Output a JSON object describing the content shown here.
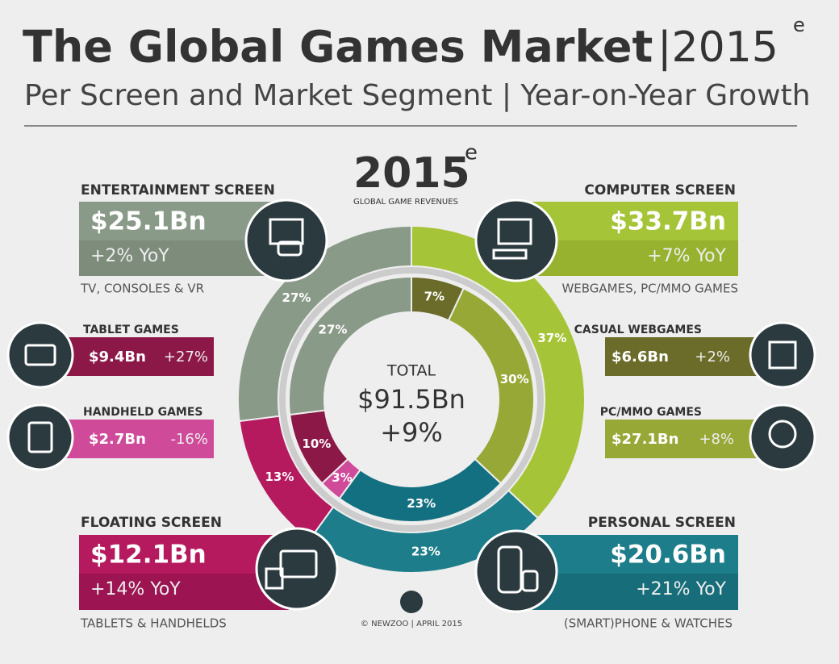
{
  "header": {
    "title": "The Global Games Market",
    "title_year": "|2015",
    "title_sup": "e",
    "subtitle": "Per Screen and Market Segment | Year-on-Year Growth"
  },
  "center": {
    "year": "2015",
    "year_sup": "e",
    "caption": "GLOBAL GAME REVENUES",
    "total_label": "TOTAL",
    "total": "$91.5Bn",
    "growth": "+9%"
  },
  "screens": [
    {
      "name": "ENTERTAINMENT SCREEN",
      "value": "$25.1Bn",
      "growth": "+2% YoY",
      "desc": "TV, CONSOLES & VR"
    },
    {
      "name": "COMPUTER SCREEN",
      "value": "$33.7Bn",
      "growth": "+7% YoY",
      "desc": "WEBGAMES, PC/MMO GAMES"
    },
    {
      "name": "FLOATING SCREEN",
      "value": "$12.1Bn",
      "growth": "+14% YoY",
      "desc": "TABLETS & HANDHELDS"
    },
    {
      "name": "PERSONAL SCREEN",
      "value": "$20.6Bn",
      "growth": "+21% YoY",
      "desc": "(SMART)PHONE & WATCHES"
    }
  ],
  "segments": [
    {
      "name": "TABLET GAMES",
      "value": "$9.4Bn",
      "growth": "+27%"
    },
    {
      "name": "HANDHELD GAMES",
      "value": "$2.7Bn",
      "growth": "-16%"
    },
    {
      "name": "CASUAL WEBGAMES",
      "value": "$6.6Bn",
      "growth": "+2%"
    },
    {
      "name": "PC/MMO GAMES",
      "value": "$27.1Bn",
      "growth": "+8%"
    }
  ],
  "footer": "© NEWZOO | APRIL 2015",
  "chart_data": [
    {
      "type": "pie",
      "categories": [
        "Computer Screen",
        "Personal Screen",
        "Floating Screen",
        "Entertainment Screen"
      ],
      "values": [
        37,
        23,
        13,
        27
      ],
      "value_labels": [
        "37%",
        "23%",
        "13%",
        "27%"
      ],
      "colors": [
        "#a6c437",
        "#1d7d8a",
        "#b5195e",
        "#8a9a88"
      ]
    },
    {
      "type": "pie",
      "categories": [
        "Casual Webgames",
        "PC/MMO Games",
        "Smartphone & Watches",
        "Handheld Games",
        "Tablet Games",
        "Entertainment Screen"
      ],
      "values": [
        7,
        30,
        23,
        3,
        10,
        27
      ],
      "value_labels": [
        "7%",
        "30%",
        "23%",
        "3%",
        "10%",
        "27%"
      ],
      "colors": [
        "#6b6b2a",
        "#98a836",
        "#137080",
        "#d04a9a",
        "#8c1848",
        "#8a9a88"
      ]
    }
  ]
}
